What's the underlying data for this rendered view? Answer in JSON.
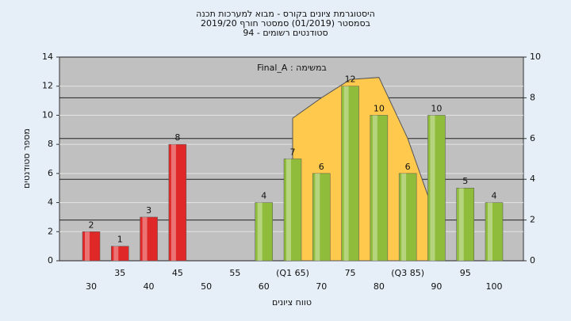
{
  "chart_data": {
    "type": "bar",
    "title": [
      "היסטוגרמת ציונים בקורס - מבוא למערכות תכנה",
      "בסמסטר (01/2019) סמסטר חורף 2019/20",
      "סטודנטים רשומים - 94"
    ],
    "annotation": "במשימה : Final_A",
    "xlabel": "טווח ציונים",
    "ylabel": "מספר סטודנטים",
    "categories": [
      "30",
      "35",
      "40",
      "45",
      "50",
      "55",
      "60",
      "(Q1 65)",
      "70",
      "75",
      "80",
      "(Q3 85)",
      "90",
      "95",
      "100"
    ],
    "series": [
      {
        "colors": [
          "#e02828",
          "#e02828",
          "#e02828",
          "#e02828",
          "#e02828",
          "#e02828",
          "#8fbc3a",
          "#8fbc3a",
          "#8fbc3a",
          "#8fbc3a",
          "#8fbc3a",
          "#8fbc3a",
          "#8fbc3a",
          "#8fbc3a",
          "#8fbc3a"
        ],
        "values": [
          2,
          1,
          3,
          8,
          null,
          null,
          4,
          7,
          6,
          12,
          10,
          6,
          10,
          5,
          4
        ]
      },
      {
        "type": "area",
        "axis": "y2",
        "color": "#ffc94d",
        "values": [
          null,
          null,
          null,
          null,
          null,
          null,
          null,
          7,
          8,
          8.9,
          9,
          6,
          2,
          null,
          null
        ]
      }
    ],
    "ylim": [
      0,
      14
    ],
    "yticks": [
      0,
      2,
      4,
      6,
      8,
      10,
      12,
      14
    ],
    "y2lim": [
      0,
      10
    ],
    "y2ticks": [
      0,
      2,
      4,
      6,
      8,
      10
    ],
    "grid": true
  }
}
